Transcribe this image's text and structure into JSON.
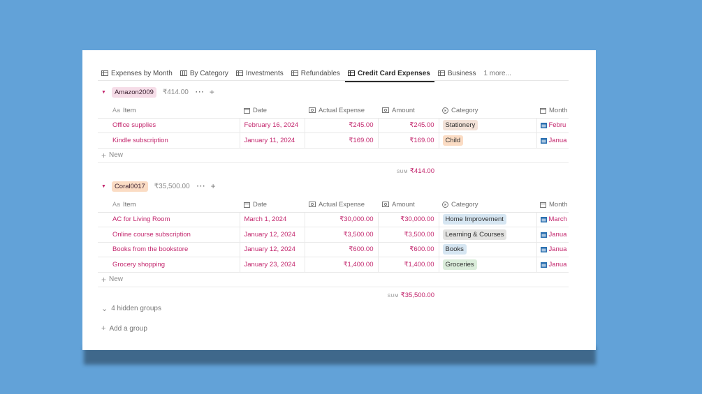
{
  "tabs": [
    {
      "label": "Expenses by Month",
      "active": false
    },
    {
      "label": "By Category",
      "active": false
    },
    {
      "label": "Investments",
      "active": false
    },
    {
      "label": "Refundables",
      "active": false
    },
    {
      "label": "Credit Card Expenses",
      "active": true
    },
    {
      "label": "Business",
      "active": false
    }
  ],
  "more_tabs": "1 more...",
  "columns": {
    "item": "Item",
    "item_prefix": "Aa",
    "date": "Date",
    "actual": "Actual Expense",
    "amount": "Amount",
    "category": "Category",
    "month": "Month"
  },
  "groups": [
    {
      "name": "Amazon2009",
      "sum": "₹414.00",
      "color": "#f6dde8",
      "rows": [
        {
          "item": "Office supplies",
          "date": "February 16, 2024",
          "actual": "₹245.00",
          "amount": "₹245.00",
          "category": "Stationery",
          "category_color": "#f3e2d8",
          "month": "Febru"
        },
        {
          "item": "Kindle subscription",
          "date": "January 11, 2024",
          "actual": "₹169.00",
          "amount": "₹169.00",
          "category": "Child",
          "category_color": "#fbdcc4",
          "month": "Janua"
        }
      ],
      "new_label": "New",
      "sum_label": "SUM",
      "sum_value": "₹414.00"
    },
    {
      "name": "Coral0017",
      "sum": "₹35,500.00",
      "color": "#fbdcc4",
      "rows": [
        {
          "item": "AC for Living Room",
          "date": "March 1, 2024",
          "actual": "₹30,000.00",
          "amount": "₹30,000.00",
          "category": "Home Improvement",
          "category_color": "#d6e6f2",
          "month": "March"
        },
        {
          "item": "Online course subscription",
          "date": "January 12, 2024",
          "actual": "₹3,500.00",
          "amount": "₹3,500.00",
          "category": "Learning & Courses",
          "category_color": "#e3e3e1",
          "month": "Janua"
        },
        {
          "item": "Books from the bookstore",
          "date": "January 12, 2024",
          "actual": "₹600.00",
          "amount": "₹600.00",
          "category": "Books",
          "category_color": "#d6e6f2",
          "month": "Janua"
        },
        {
          "item": "Grocery shopping",
          "date": "January 23, 2024",
          "actual": "₹1,400.00",
          "amount": "₹1,400.00",
          "category": "Groceries",
          "category_color": "#dbeddb",
          "month": "Janua"
        }
      ],
      "new_label": "New",
      "sum_label": "SUM",
      "sum_value": "₹35,500.00"
    }
  ],
  "hidden_groups": "4 hidden groups",
  "add_group": "Add a group",
  "colors": {
    "background": "#62a2d8",
    "accent": "#c3266d"
  }
}
